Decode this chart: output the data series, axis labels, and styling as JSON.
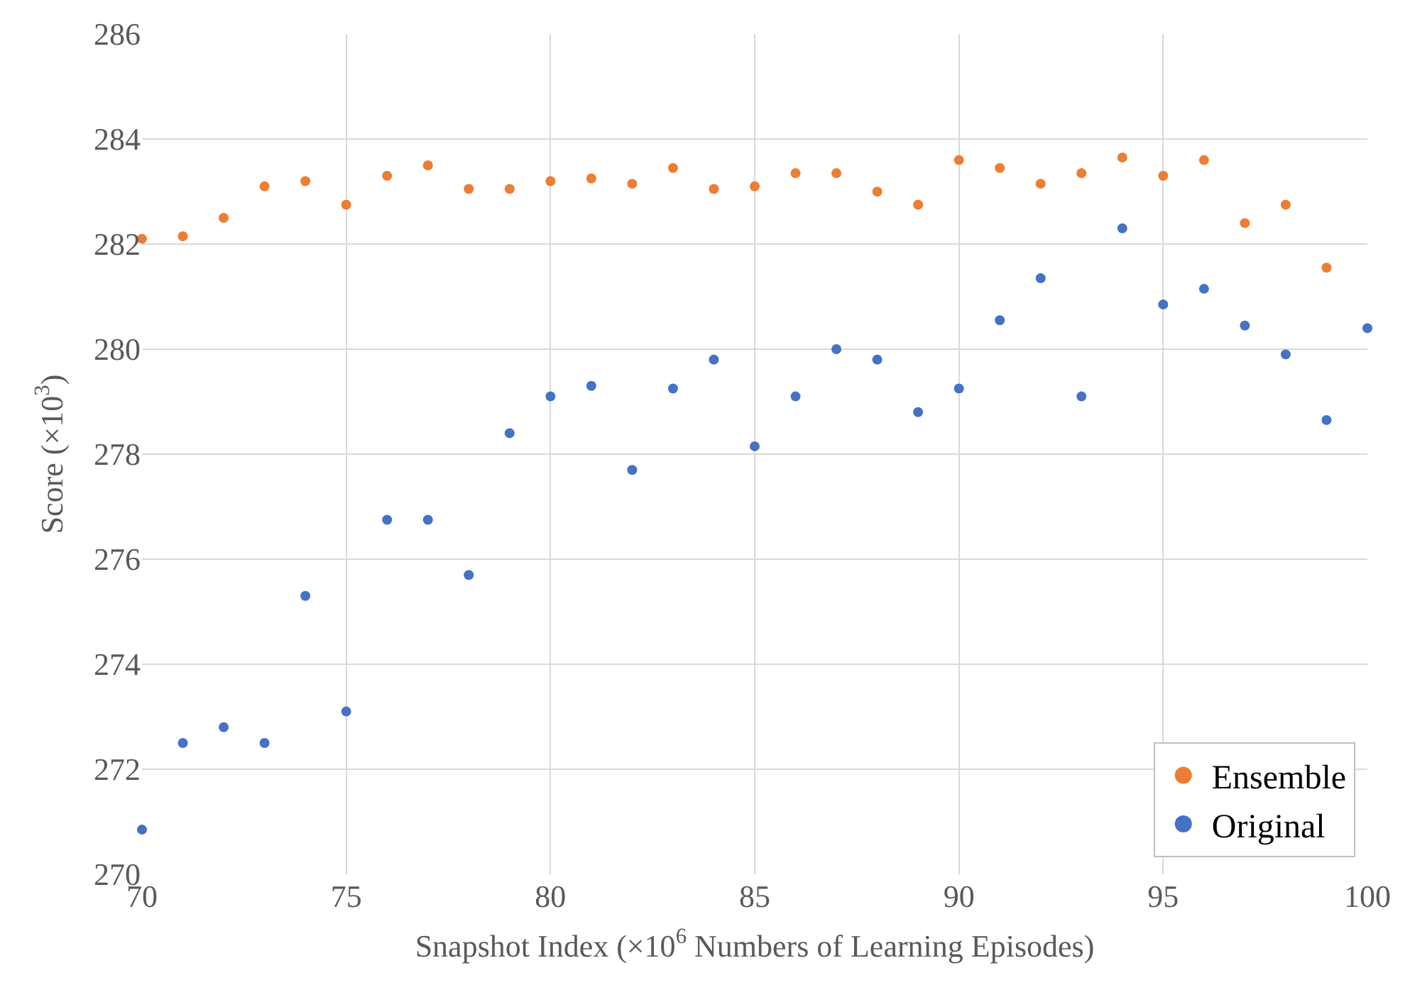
{
  "chart_data": {
    "type": "scatter",
    "xlabel": "Snapshot Index (×10$^{6}$ Numbers of Learning Episodes)",
    "ylabel": "Score (×10$^{3}$)",
    "xlim": [
      70,
      100
    ],
    "xticks": [
      70,
      75,
      80,
      85,
      90,
      95,
      100
    ],
    "ylim": [
      270,
      286
    ],
    "yticks": [
      270,
      272,
      274,
      276,
      278,
      280,
      282,
      284,
      286
    ],
    "grid": true,
    "legend": "bottom right",
    "marker": "circle",
    "series": [
      {
        "name": "Ensemble",
        "color": "#ed7d31",
        "x": [
          70,
          71,
          72,
          73,
          74,
          75,
          76,
          77,
          78,
          79,
          80,
          81,
          82,
          83,
          84,
          85,
          86,
          87,
          88,
          89,
          90,
          91,
          92,
          93,
          94,
          95,
          96,
          97,
          98,
          99
        ],
        "values": [
          282.1,
          282.15,
          282.5,
          283.1,
          283.2,
          282.75,
          283.3,
          283.5,
          283.05,
          283.05,
          283.2,
          283.25,
          283.15,
          283.45,
          283.05,
          283.1,
          283.35,
          283.35,
          283.0,
          282.75,
          283.6,
          283.45,
          283.15,
          283.35,
          283.65,
          283.3,
          283.6,
          282.4,
          282.75,
          281.55
        ]
      },
      {
        "name": "Original",
        "color": "#4472c4",
        "x": [
          70,
          71,
          72,
          73,
          74,
          75,
          76,
          77,
          78,
          79,
          80,
          81,
          82,
          83,
          84,
          85,
          86,
          87,
          88,
          89,
          90,
          91,
          92,
          93,
          94,
          95,
          96,
          97,
          98,
          99,
          100
        ],
        "values": [
          270.85,
          272.5,
          272.8,
          272.5,
          275.3,
          273.1,
          276.75,
          276.75,
          275.7,
          278.4,
          279.1,
          279.3,
          277.7,
          279.25,
          279.8,
          278.15,
          279.1,
          280.0,
          279.8,
          278.8,
          279.25,
          280.55,
          281.35,
          279.1,
          282.3,
          280.85,
          281.15,
          280.45,
          279.9,
          278.65,
          280.4
        ]
      }
    ]
  }
}
